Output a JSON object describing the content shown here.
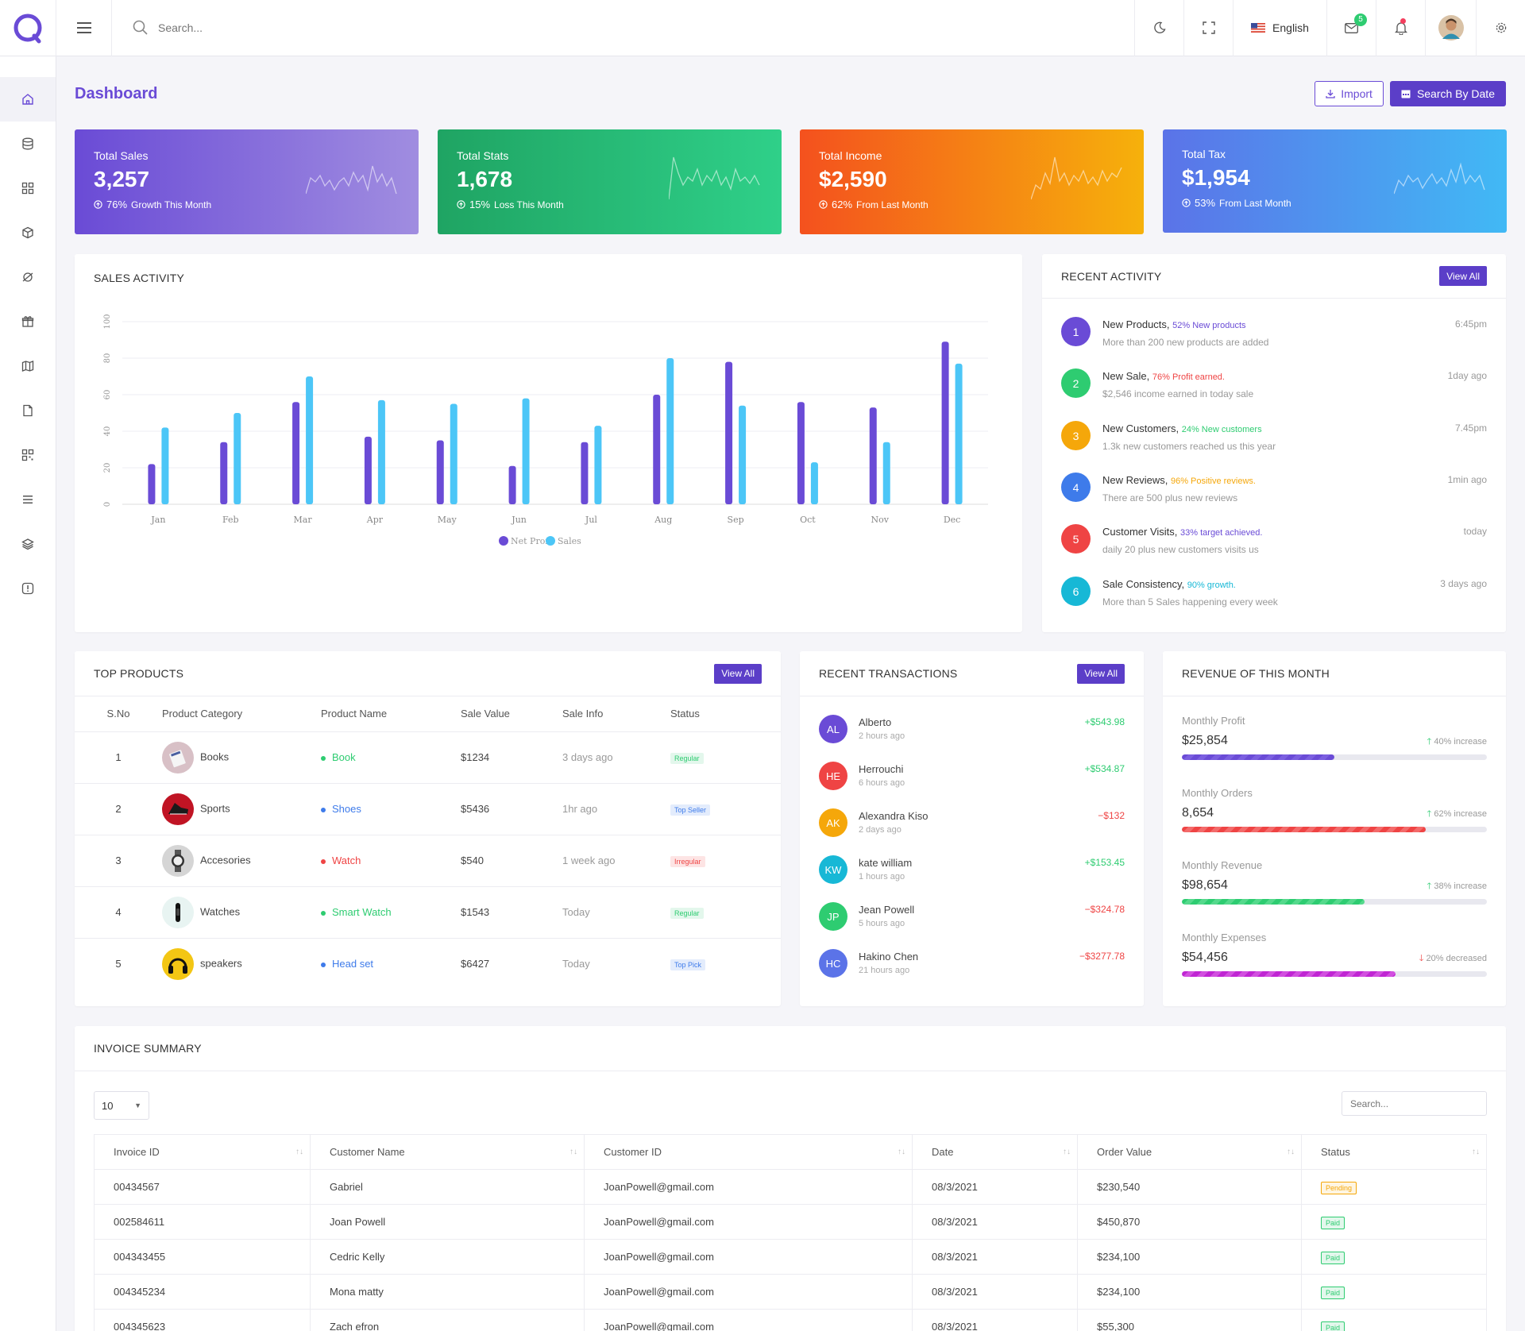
{
  "topbar": {
    "search_placeholder": "Search...",
    "language": "English",
    "mail_count": "5"
  },
  "page": {
    "title": "Dashboard",
    "import_label": "Import",
    "search_date_label": "Search By Date"
  },
  "stats": [
    {
      "label": "Total Sales",
      "value": "3,257",
      "pct": "76%",
      "note": "Growth This Month",
      "c1": "#6a4bd6",
      "c2": "#a08de0"
    },
    {
      "label": "Total Stats",
      "value": "1,678",
      "pct": "15%",
      "note": "Loss This Month",
      "c1": "#1fa463",
      "c2": "#2fd089"
    },
    {
      "label": "Total Income",
      "value": "$2,590",
      "pct": "62%",
      "note": "From Last Month",
      "c1": "#f4511e",
      "c2": "#f6b10b"
    },
    {
      "label": "Total Tax",
      "value": "$1,954",
      "pct": "53%",
      "note": "From Last Month",
      "c1": "#5b73e8",
      "c2": "#41b9f5"
    }
  ],
  "sales": {
    "title": "SALES ACTIVITY"
  },
  "chart_data": {
    "type": "bar",
    "title": "SALES ACTIVITY",
    "categories": [
      "Jan",
      "Feb",
      "Mar",
      "Apr",
      "May",
      "Jun",
      "Jul",
      "Aug",
      "Sep",
      "Oct",
      "Nov",
      "Dec"
    ],
    "series": [
      {
        "name": "Net Profit",
        "color": "#6a4bd6",
        "values": [
          22,
          34,
          56,
          37,
          35,
          21,
          34,
          60,
          78,
          56,
          53,
          89
        ]
      },
      {
        "name": "Sales",
        "color": "#4cc6f7",
        "values": [
          42,
          50,
          70,
          57,
          55,
          58,
          43,
          80,
          54,
          23,
          34,
          77
        ]
      }
    ],
    "yticks": [
      0,
      20,
      40,
      60,
      80,
      100
    ],
    "ylim": [
      0,
      100
    ],
    "legend": "bottom"
  },
  "activity": {
    "title": "RECENT ACTIVITY",
    "view_all": "View All",
    "items": [
      {
        "num": "1",
        "title": "New Products,",
        "hl": "52% New products",
        "desc": "More than 200 new products are added",
        "time": "6:45pm",
        "color": "#6a4bd6"
      },
      {
        "num": "2",
        "title": "New Sale,",
        "hl": "76% Profit earned.",
        "desc": "$2,546 income earned in today sale",
        "time": "1day ago",
        "color": "#2ecc71"
      },
      {
        "num": "3",
        "title": "New Customers,",
        "hl": "24% New customers",
        "desc": "1.3k new customers reached us this year",
        "time": "7.45pm",
        "color": "#f5a70a"
      },
      {
        "num": "4",
        "title": "New Reviews,",
        "hl": "96% Positive reviews.",
        "desc": "There are 500 plus new reviews",
        "time": "1min ago",
        "color": "#3e7bea"
      },
      {
        "num": "5",
        "title": "Customer Visits,",
        "hl": "33% target achieved.",
        "desc": "daily 20 plus new customers visits us",
        "time": "today",
        "color": "#ef4444"
      },
      {
        "num": "6",
        "title": "Sale Consistency,",
        "hl": "90% growth.",
        "desc": "More than 5 Sales happening every week",
        "time": "3 days ago",
        "color": "#17b8d6"
      }
    ]
  },
  "products": {
    "title": "TOP PRODUCTS",
    "view_all": "View All",
    "headers": [
      "S.No",
      "Product Category",
      "Product Name",
      "Sale Value",
      "Sale Info",
      "Status"
    ],
    "rows": [
      {
        "sno": "1",
        "cat": "Books",
        "name": "Book",
        "value": "$1234",
        "info": "3 days ago",
        "status": "Regular",
        "color": "#2ecc71"
      },
      {
        "sno": "2",
        "cat": "Sports",
        "name": "Shoes",
        "value": "$5436",
        "info": "1hr ago",
        "status": "Top Seller",
        "color": "#3e7bea"
      },
      {
        "sno": "3",
        "cat": "Accesories",
        "name": "Watch",
        "value": "$540",
        "info": "1 week ago",
        "status": "Irregular",
        "color": "#ef4444"
      },
      {
        "sno": "4",
        "cat": "Watches",
        "name": "Smart Watch",
        "value": "$1543",
        "info": "Today",
        "status": "Regular",
        "color": "#2ecc71"
      },
      {
        "sno": "5",
        "cat": "speakers",
        "name": "Head set",
        "value": "$6427",
        "info": "Today",
        "status": "Top Pick",
        "color": "#3e7bea"
      }
    ]
  },
  "transactions": {
    "title": "RECENT TRANSACTIONS",
    "view_all": "View All",
    "items": [
      {
        "initials": "AL",
        "name": "Alberto",
        "time": "2 hours ago",
        "amount": "+$543.98",
        "bg": "#6a4bd6",
        "amt_color": "#2ecc71"
      },
      {
        "initials": "HE",
        "name": "Herrouchi",
        "time": "6 hours ago",
        "amount": "+$534.87",
        "bg": "#ef4444",
        "amt_color": "#2ecc71"
      },
      {
        "initials": "AK",
        "name": "Alexandra Kiso",
        "time": "2 days ago",
        "amount": "−$132",
        "bg": "#f5a70a",
        "amt_color": "#ef4444"
      },
      {
        "initials": "KW",
        "name": "kate william",
        "time": "1 hours ago",
        "amount": "+$153.45",
        "bg": "#17b8d6",
        "amt_color": "#2ecc71"
      },
      {
        "initials": "JP",
        "name": "Jean Powell",
        "time": "5 hours ago",
        "amount": "−$324.78",
        "bg": "#2ecc71",
        "amt_color": "#ef4444"
      },
      {
        "initials": "HC",
        "name": "Hakino Chen",
        "time": "21 hours ago",
        "amount": "−$3277.78",
        "bg": "#5b73e8",
        "amt_color": "#ef4444"
      }
    ]
  },
  "revenue": {
    "title": "REVENUE OF THIS MONTH",
    "items": [
      {
        "label": "Monthly Profit",
        "value": "$25,854",
        "change": "40% increase",
        "dir": "up",
        "pct": 50,
        "color": "#6a4bd6"
      },
      {
        "label": "Monthly Orders",
        "value": "8,654",
        "change": "62% increase",
        "dir": "up",
        "pct": 80,
        "color": "#ef4444"
      },
      {
        "label": "Monthly Revenue",
        "value": "$98,654",
        "change": "38% increase",
        "dir": "up",
        "pct": 60,
        "color": "#2ecc71"
      },
      {
        "label": "Monthly Expenses",
        "value": "$54,456",
        "change": "20% decreased",
        "dir": "down",
        "pct": 70,
        "color": "#c026d3"
      }
    ]
  },
  "invoice": {
    "title": "INVOICE SUMMARY",
    "page_size": "10",
    "search_placeholder": "Search...",
    "headers": [
      "Invoice ID",
      "Customer Name",
      "Customer ID",
      "Date",
      "Order Value",
      "Status"
    ],
    "rows": [
      {
        "id": "00434567",
        "name": "Gabriel",
        "cid": "JoanPowell@gmail.com",
        "date": "08/3/2021",
        "value": "$230,540",
        "status": "Pending"
      },
      {
        "id": "002584611",
        "name": "Joan Powell",
        "cid": "JoanPowell@gmail.com",
        "date": "08/3/2021",
        "value": "$450,870",
        "status": "Paid"
      },
      {
        "id": "004343455",
        "name": "Cedric Kelly",
        "cid": "JoanPowell@gmail.com",
        "date": "08/3/2021",
        "value": "$234,100",
        "status": "Paid"
      },
      {
        "id": "004345234",
        "name": "Mona matty",
        "cid": "JoanPowell@gmail.com",
        "date": "08/3/2021",
        "value": "$234,100",
        "status": "Paid"
      },
      {
        "id": "004345623",
        "name": "Zach efron",
        "cid": "JoanPowell@gmail.com",
        "date": "08/3/2021",
        "value": "$55,300",
        "status": "Paid"
      }
    ]
  }
}
